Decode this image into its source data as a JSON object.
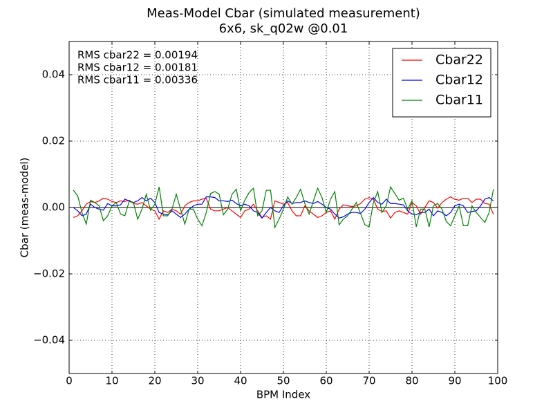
{
  "chart_data": {
    "type": "line",
    "title": "Meas-Model Cbar (simulated measurement)",
    "subtitle": "6x6, sk_q02w @0.01",
    "x_label": "BPM Index",
    "y_label": "Cbar (meas-model)",
    "annotations": [
      "RMS cbar22 = 0.00194",
      "RMS cbar12 = 0.00181",
      "RMS cbar11 = 0.00336"
    ],
    "legend": "upper right",
    "grid": true,
    "xlim": [
      0,
      100
    ],
    "xticks": [
      0,
      10,
      20,
      30,
      40,
      50,
      60,
      70,
      80,
      90,
      100
    ],
    "ylim": [
      -0.05,
      0.05
    ],
    "yticks": [
      {
        "value": -0.04,
        "label": "−0.04"
      },
      {
        "value": -0.02,
        "label": "−0.02"
      },
      {
        "value": 0,
        "label": "0.00"
      },
      {
        "value": 0.02,
        "label": "0.02"
      },
      {
        "value": 0.04,
        "label": "0.04"
      }
    ],
    "x": [
      1,
      2,
      3,
      4,
      5,
      6,
      7,
      8,
      9,
      10,
      11,
      12,
      13,
      14,
      15,
      16,
      17,
      18,
      19,
      20,
      21,
      22,
      23,
      24,
      25,
      26,
      27,
      28,
      29,
      30,
      31,
      32,
      33,
      34,
      35,
      36,
      37,
      38,
      39,
      40,
      41,
      42,
      43,
      44,
      45,
      46,
      47,
      48,
      49,
      50,
      51,
      52,
      53,
      54,
      55,
      56,
      57,
      58,
      59,
      60,
      61,
      62,
      63,
      64,
      65,
      66,
      67,
      68,
      69,
      70,
      71,
      72,
      73,
      74,
      75,
      76,
      77,
      78,
      79,
      80,
      81,
      82,
      83,
      84,
      85,
      86,
      87,
      88,
      89,
      90,
      91,
      92,
      93,
      94,
      95,
      96,
      97,
      98,
      99
    ],
    "series": [
      {
        "name": "Cbar22",
        "color": "#ff0000",
        "values": [
          -0.003,
          -0.0025,
          -0.001,
          0.001,
          0.0018,
          0.0015,
          0.002,
          0.0028,
          0.0025,
          0.0018,
          0.0015,
          0.002,
          0.0018,
          0.0022,
          0.0012,
          0.001,
          0.0015,
          0.0005,
          -0.0005,
          -0.001,
          -0.0035,
          -0.001,
          -0.0015,
          -0.0005,
          -0.001,
          -0.002,
          0.0005,
          0.0015,
          0.002,
          0.002,
          0.0025,
          0.0028,
          -0.0005,
          -0.001,
          -0.001,
          -0.0005,
          0,
          -0.001,
          -0.002,
          -0.003,
          -0.001,
          -0.0005,
          0.001,
          -0.001,
          -0.003,
          -0.0025,
          -0.0035,
          0.002,
          0.0015,
          0.001,
          0.0015,
          -0.001,
          -0.0025,
          -0.0025,
          0.0005,
          -0.001,
          -0.002,
          -0.003,
          -0.0025,
          -0.0015,
          -0.001,
          -0.0035,
          -0.0005,
          0.0008,
          0.0005,
          0.0003,
          0.0005,
          0.0012,
          0.0025,
          0.003,
          0.0025,
          -0.0005,
          -0.0012,
          -0.001,
          -0.0032,
          -0.0015,
          -0.001,
          -0.0015,
          -0.002,
          0.0015,
          0.0005,
          -0.002,
          0,
          0.002,
          0.0015,
          -0.0002,
          0.0015,
          0.0025,
          0.0032,
          0.0025,
          0.0022,
          0.0028,
          0.0028,
          0.0015,
          0.0025,
          0.0025,
          0.0012,
          0.001,
          -0.002
        ]
      },
      {
        "name": "Cbar12",
        "color": "#0000ff",
        "values": [
          0,
          -0.001,
          -0.0025,
          -0.002,
          0.001,
          0,
          -0.0005,
          -0.0008,
          0.0012,
          0.0005,
          0.0005,
          0.0008,
          0.0025,
          0.002,
          0.0015,
          0.002,
          0.003,
          0.002,
          0.0028,
          0.0015,
          -0.0015,
          -0.002,
          -0.0022,
          -0.001,
          -0.002,
          -0.003,
          -0.002,
          -0.0005,
          0.0005,
          0.001,
          0.001,
          0.0032,
          0.0032,
          0.003,
          0.002,
          0.002,
          0.0018,
          0.0022,
          0.0012,
          0.0005,
          0.001,
          0.0005,
          -0.001,
          -0.0015,
          -0.0032,
          -0.0015,
          0,
          -0.001,
          -0.0015,
          0.0005,
          0.002,
          0.0012,
          0.0015,
          0.0015,
          0.002,
          0.0015,
          0.0012,
          0.0018,
          0.001,
          0,
          -0.0005,
          -0.002,
          -0.0032,
          -0.0028,
          -0.002,
          -0.0015,
          -0.0015,
          -0.0018,
          -0.0005,
          0.0015,
          0.003,
          0.0015,
          0.001,
          0.0025,
          0.0012,
          0.0012,
          0.001,
          0.0008,
          -0.001,
          -0.002,
          -0.0022,
          -0.0015,
          -0.0015,
          -0.0005,
          -0.0025,
          -0.001,
          -0.0015,
          -0.0025,
          -0.0015,
          0.0005,
          0.001,
          0.0005,
          -0.0015,
          -0.0012,
          -0.001,
          0.0005,
          0.0025,
          0.003,
          0.002
        ]
      },
      {
        "name": "Cbar11",
        "color": "#008000",
        "values": [
          0.0052,
          0.0035,
          -0.0015,
          -0.005,
          0.0022,
          0.0015,
          0.0005,
          -0.004,
          -0.0025,
          0.0005,
          0.0015,
          -0.002,
          -0.0025,
          0.0018,
          0.0015,
          -0.0035,
          -0.0005,
          0.004,
          -0.0008,
          0.001,
          0.0062,
          -0.0025,
          -0.0025,
          -0.0005,
          0.004,
          -0.0005,
          -0.005,
          -0.0005,
          -0.0005,
          -0.0035,
          -0.0055,
          -0.0015,
          0.0042,
          0.0048,
          0.004,
          -0.0022,
          -0.0005,
          0.004,
          0.0055,
          -0.001,
          0.0022,
          0.0045,
          0.0058,
          -0.0025,
          -0.001,
          0.0052,
          0.0052,
          -0.006,
          -0.0035,
          -0.0005,
          0.0032,
          0.001,
          0.003,
          0.0055,
          0.0012,
          -0.002,
          0.002,
          0.0058,
          0.003,
          -0.0015,
          0.0025,
          0.0048,
          -0.0052,
          -0.0035,
          -0.0025,
          -0.0005,
          0.0015,
          -0.0018,
          -0.0052,
          -0.0058,
          0.0015,
          0.0048,
          -0.0015,
          0.0005,
          0.0062,
          0.0042,
          0.0022,
          0.0028,
          -0.0005,
          0.002,
          -0.0058,
          -0.0005,
          -0.0005,
          -0.0058,
          0.0005,
          0.0012,
          -0.0005,
          -0.0042,
          -0.0055,
          -0.0025,
          0.0005,
          -0.0055,
          -0.0055,
          0.0005,
          -0.0015,
          -0.003,
          -0.0045,
          -0.0015,
          0.0055
        ]
      }
    ]
  }
}
